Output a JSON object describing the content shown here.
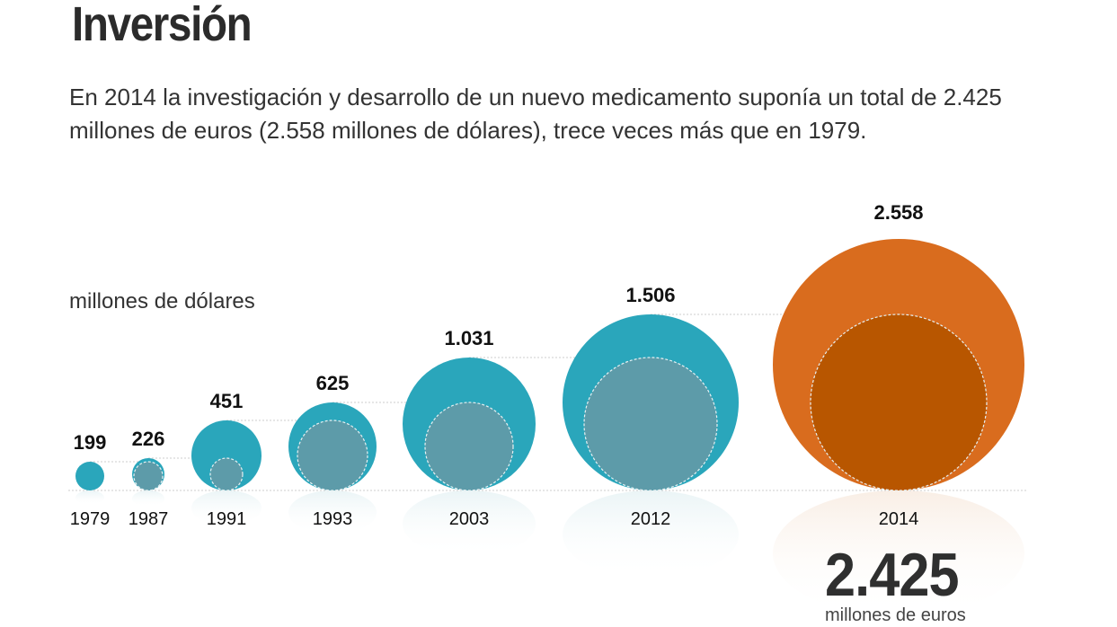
{
  "title": "Inversión",
  "subtitle": "En 2014 la investigación y desarrollo de un nuevo medicamento suponía un total de 2.425 millones de euros (2.558 millones de dólares), trece veces más que en 1979.",
  "highlight": {
    "value": "2.425",
    "unit": "millones de euros"
  },
  "chart_data": {
    "type": "bubble",
    "unit_label": "millones de dólares",
    "categories": [
      "1979",
      "1987",
      "1991",
      "1993",
      "2003",
      "2012",
      "2014"
    ],
    "values": [
      199,
      226,
      451,
      625,
      1031,
      1506,
      2558
    ],
    "value_labels": [
      "199",
      "226",
      "451",
      "625",
      "1.031",
      "1.506",
      "2.558"
    ],
    "colors": {
      "bubble": "#2aa6bb",
      "previous": "#5d9ba9",
      "highlight": "#d96c1e",
      "highlight_previous": "#b85600"
    }
  }
}
